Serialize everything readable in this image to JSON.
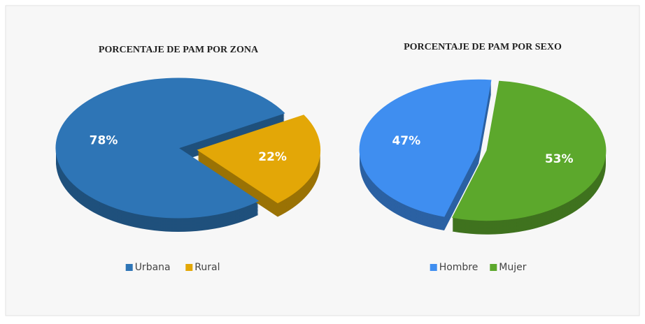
{
  "chart_data": [
    {
      "type": "pie",
      "title": "PORCENTAJE DE PAM POR ZONA",
      "categories": [
        "Urbana",
        "Rural"
      ],
      "values": [
        78,
        22
      ],
      "value_labels": [
        "78%",
        "22%"
      ],
      "colors": [
        "#2e75b6",
        "#e3a707"
      ],
      "legend": "bottom"
    },
    {
      "type": "pie",
      "title": "PORCENTAJE DE PAM POR SEXO",
      "categories": [
        "Hombre",
        "Mujer"
      ],
      "values": [
        47,
        53
      ],
      "value_labels": [
        "47%",
        "53%"
      ],
      "colors": [
        "#3f8ef0",
        "#5ca82c"
      ],
      "legend": "bottom"
    }
  ]
}
